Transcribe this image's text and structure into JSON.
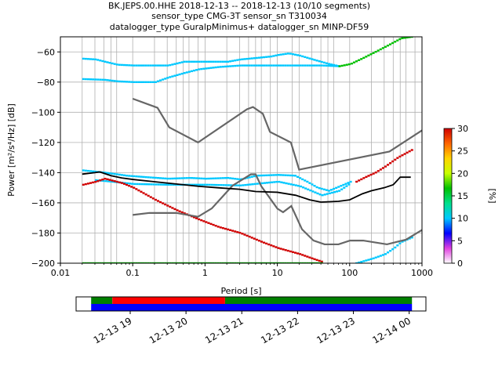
{
  "title": {
    "line1": "BK.JEPS.00.HHE   2018-12-13 -- 2018-12-13  (10/10 segments)",
    "line2": "sensor_type CMG-3T sensor_sn T310034",
    "line3": "datalogger_type GuralpMinimus+ datalogger_sn MINP-DF59"
  },
  "chart_data": [
    {
      "type": "heatmap",
      "xlabel": "Period [s]",
      "ylabel": "Power [m²/s⁴/Hz] [dB]",
      "xscale": "log",
      "xlim": [
        0.01,
        1000
      ],
      "ylim": [
        -200,
        -50
      ],
      "x_ticks": [
        {
          "value": 0.01,
          "label": "0.01"
        },
        {
          "value": 0.1,
          "label": "0.1"
        },
        {
          "value": 1,
          "label": "1"
        },
        {
          "value": 10,
          "label": "10"
        },
        {
          "value": 100,
          "label": "100"
        },
        {
          "value": 1000,
          "label": "1000"
        }
      ],
      "y_ticks": [
        {
          "value": -60,
          "label": "−60"
        },
        {
          "value": -80,
          "label": "−80"
        },
        {
          "value": -100,
          "label": "−100"
        },
        {
          "value": -120,
          "label": "−120"
        },
        {
          "value": -140,
          "label": "−140"
        },
        {
          "value": -160,
          "label": "−160"
        },
        {
          "value": -180,
          "label": "−180"
        },
        {
          "value": -200,
          "label": "−200"
        }
      ],
      "grid_periods": [
        0.02,
        0.03,
        0.04,
        0.05,
        0.06,
        0.1,
        0.2,
        0.3,
        0.4,
        0.5,
        0.6,
        0.8,
        1,
        2,
        3,
        4,
        5,
        6,
        8,
        10,
        16,
        20,
        30,
        40,
        50,
        60,
        100,
        200,
        300,
        400,
        500,
        600,
        800
      ],
      "grid_y": [
        -60,
        -80,
        -100,
        -120,
        -140,
        -160,
        -180
      ],
      "colorbar": {
        "label": "[%]",
        "range": [
          0,
          30
        ],
        "ticks": [
          {
            "value": 0,
            "label": "0"
          },
          {
            "value": 5,
            "label": "5"
          },
          {
            "value": 10,
            "label": "10"
          },
          {
            "value": 15,
            "label": "15"
          },
          {
            "value": 20,
            "label": "20"
          },
          {
            "value": 25,
            "label": "25"
          },
          {
            "value": 30,
            "label": "30"
          }
        ],
        "colors": [
          "#ffffff",
          "#e040e0",
          "#0000ff",
          "#00c8ff",
          "#00e08c",
          "#00c000",
          "#c8ff00",
          "#ffd400",
          "#ff6400",
          "#d00000"
        ]
      },
      "noise_model_curves": {
        "color": "#666666",
        "high": [
          [
            0.1,
            -91
          ],
          [
            0.22,
            -97
          ],
          [
            0.32,
            -110
          ],
          [
            0.8,
            -120
          ],
          [
            3.8,
            -98
          ],
          [
            4.6,
            -96.5
          ],
          [
            6.3,
            -101
          ],
          [
            7.9,
            -113
          ],
          [
            15.4,
            -120
          ],
          [
            20,
            -138
          ],
          [
            354.8,
            -126
          ],
          [
            1000,
            -112
          ]
        ],
        "low": [
          [
            0.1,
            -168
          ],
          [
            0.17,
            -166.7
          ],
          [
            0.4,
            -166.7
          ],
          [
            0.8,
            -169.2
          ],
          [
            1.24,
            -163.7
          ],
          [
            2.4,
            -148.6
          ],
          [
            4.3,
            -141.1
          ],
          [
            5,
            -141.1
          ],
          [
            6,
            -149
          ],
          [
            10,
            -163.8
          ],
          [
            12,
            -166.2
          ],
          [
            15.6,
            -162.1
          ],
          [
            21.9,
            -177.5
          ],
          [
            31.6,
            -185
          ],
          [
            45,
            -187.5
          ],
          [
            70,
            -187.5
          ],
          [
            101,
            -185
          ],
          [
            154,
            -185
          ],
          [
            328,
            -187.5
          ],
          [
            600,
            -184.4
          ],
          [
            1000,
            -178
          ]
        ]
      },
      "mean_curve": {
        "color": "#000000",
        "points": [
          [
            0.02,
            -141
          ],
          [
            0.03,
            -140
          ],
          [
            0.035,
            -139.5
          ],
          [
            0.05,
            -142
          ],
          [
            0.07,
            -143.5
          ],
          [
            0.1,
            -144.5
          ],
          [
            0.2,
            -146
          ],
          [
            0.4,
            -147.5
          ],
          [
            0.8,
            -149
          ],
          [
            1.5,
            -150
          ],
          [
            3,
            -151
          ],
          [
            5,
            -152.5
          ],
          [
            10,
            -153
          ],
          [
            18,
            -155
          ],
          [
            28,
            -158
          ],
          [
            40,
            -159.5
          ],
          [
            70,
            -159
          ],
          [
            100,
            -158
          ],
          [
            150,
            -154
          ],
          [
            200,
            -152
          ],
          [
            300,
            -150
          ],
          [
            400,
            -148
          ],
          [
            500,
            -143
          ],
          [
            700,
            -143
          ]
        ]
      },
      "density_bands": [
        {
          "color": "#00c8ff",
          "points": [
            [
              0.02,
              -64.5
            ],
            [
              0.03,
              -65
            ],
            [
              0.04,
              -66.5
            ],
            [
              0.06,
              -68.5
            ],
            [
              0.1,
              -69
            ],
            [
              0.3,
              -69
            ],
            [
              0.5,
              -66.5
            ],
            [
              1,
              -66.5
            ],
            [
              2,
              -66.5
            ],
            [
              3,
              -65
            ],
            [
              5,
              -64
            ],
            [
              8,
              -63
            ],
            [
              10,
              -62
            ],
            [
              14,
              -61
            ],
            [
              20,
              -62.5
            ],
            [
              30,
              -65
            ],
            [
              50,
              -68
            ],
            [
              70,
              -69.5
            ]
          ]
        },
        {
          "color": "#00c8ff",
          "points": [
            [
              0.02,
              -78
            ],
            [
              0.04,
              -78.5
            ],
            [
              0.06,
              -79.5
            ],
            [
              0.1,
              -80
            ],
            [
              0.2,
              -80
            ],
            [
              0.3,
              -77
            ],
            [
              0.5,
              -74
            ],
            [
              0.8,
              -71.5
            ],
            [
              1.5,
              -70
            ],
            [
              3,
              -69
            ],
            [
              8,
              -69
            ],
            [
              20,
              -69
            ],
            [
              40,
              -69
            ],
            [
              70,
              -69.5
            ]
          ]
        },
        {
          "color": "#00c000",
          "points": [
            [
              70,
              -69.5
            ],
            [
              100,
              -68
            ],
            [
              150,
              -64
            ],
            [
              220,
              -60
            ],
            [
              350,
              -55
            ],
            [
              500,
              -51
            ],
            [
              700,
              -50
            ]
          ]
        },
        {
          "color": "#00c8ff",
          "points": [
            [
              0.02,
              -138.5
            ],
            [
              0.04,
              -140
            ],
            [
              0.08,
              -142
            ],
            [
              0.15,
              -143
            ],
            [
              0.3,
              -144
            ],
            [
              0.6,
              -143.5
            ],
            [
              1,
              -144
            ],
            [
              2,
              -143.5
            ],
            [
              3,
              -144.5
            ],
            [
              5,
              -142
            ],
            [
              10,
              -141.5
            ],
            [
              17,
              -142
            ],
            [
              25,
              -146
            ],
            [
              35,
              -150
            ],
            [
              50,
              -152
            ],
            [
              80,
              -148
            ],
            [
              100,
              -146
            ]
          ]
        },
        {
          "color": "#00c8ff",
          "points": [
            [
              0.03,
              -145
            ],
            [
              0.05,
              -146
            ],
            [
              0.1,
              -147.5
            ],
            [
              0.3,
              -148
            ],
            [
              1,
              -148
            ],
            [
              3,
              -148.5
            ],
            [
              6,
              -147
            ],
            [
              10,
              -146
            ],
            [
              20,
              -149
            ],
            [
              40,
              -155
            ],
            [
              70,
              -152
            ],
            [
              100,
              -147
            ]
          ]
        },
        {
          "color": "#d00000",
          "points": [
            [
              0.02,
              -148
            ],
            [
              0.03,
              -146
            ],
            [
              0.04,
              -144
            ],
            [
              0.07,
              -147
            ],
            [
              0.1,
              -150
            ],
            [
              0.2,
              -158
            ],
            [
              0.4,
              -165
            ],
            [
              0.8,
              -171
            ],
            [
              1.5,
              -176
            ],
            [
              3,
              -180
            ],
            [
              6,
              -186
            ],
            [
              10,
              -190
            ],
            [
              20,
              -194
            ],
            [
              30,
              -197
            ],
            [
              40,
              -199
            ]
          ]
        },
        {
          "color": "#00c000",
          "points": [
            [
              0.02,
              -200
            ],
            [
              0.1,
              -200
            ],
            [
              1,
              -200
            ],
            [
              10,
              -200
            ],
            [
              40,
              -200
            ]
          ]
        },
        {
          "color": "#d00000",
          "points": [
            [
              120,
              -146
            ],
            [
              160,
              -143
            ],
            [
              220,
              -140
            ],
            [
              300,
              -136
            ],
            [
              450,
              -130
            ],
            [
              700,
              -125
            ]
          ]
        },
        {
          "color": "#00c8ff",
          "points": [
            [
              120,
              -200
            ],
            [
              200,
              -197
            ],
            [
              300,
              -194
            ],
            [
              400,
              -190
            ],
            [
              500,
              -186
            ],
            [
              700,
              -183
            ]
          ]
        }
      ]
    },
    {
      "type": "bar",
      "x_ticks": [
        {
          "value": 19,
          "label": "12-13 19"
        },
        {
          "value": 20,
          "label": "12-13 20"
        },
        {
          "value": 21,
          "label": "12-13 21"
        },
        {
          "value": 22,
          "label": "12-13 22"
        },
        {
          "value": 23,
          "label": "12-13 23"
        },
        {
          "value": 24,
          "label": "12-14 00"
        }
      ],
      "xlim": [
        18.03,
        24.3
      ],
      "rows": [
        {
          "name": "top",
          "segments": [
            {
              "start": 18.3,
              "end": 18.68,
              "color": "#008000"
            },
            {
              "start": 18.68,
              "end": 20.7,
              "color": "#ff0000"
            },
            {
              "start": 20.7,
              "end": 24.05,
              "color": "#008000"
            }
          ]
        },
        {
          "name": "bottom",
          "segments": [
            {
              "start": 18.3,
              "end": 24.05,
              "color": "#0000ff"
            }
          ]
        }
      ]
    }
  ]
}
